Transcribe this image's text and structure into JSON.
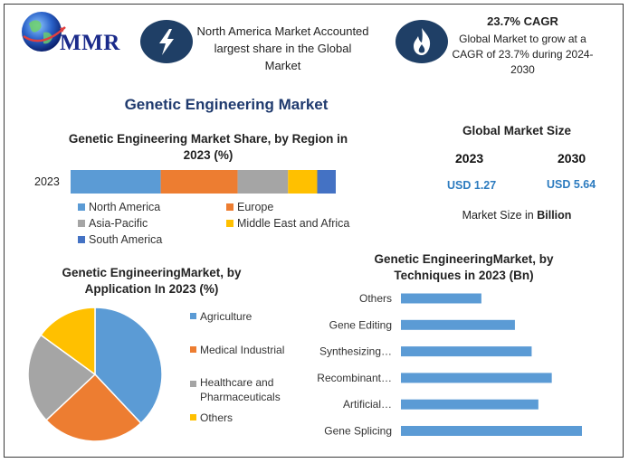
{
  "logo": {
    "text": "MMR"
  },
  "info": {
    "north_america": "North America Market Accounted largest share in the Global Market",
    "cagr_title": "23.7% CAGR",
    "cagr_text": "Global Market to grow at a CAGR of 23.7% during 2024-2030"
  },
  "main_title": "Genetic Engineering Market",
  "market_size": {
    "title": "Global Market Size",
    "year_a": "2023",
    "year_b": "2030",
    "value_a": "USD 1.27",
    "value_b": "USD 5.64",
    "note_prefix": "Market Size in ",
    "note_unit": "Billion"
  },
  "chart_data": [
    {
      "type": "bar",
      "orientation": "horizontal-stacked",
      "title": "Genetic Engineering Market Share, by Region in 2023 (%)",
      "categories": [
        "2023"
      ],
      "series": [
        {
          "name": "North America",
          "values": [
            34
          ],
          "color": "#5b9bd5"
        },
        {
          "name": "Europe",
          "values": [
            29
          ],
          "color": "#ed7d31"
        },
        {
          "name": "Asia-Pacific",
          "values": [
            19
          ],
          "color": "#a5a5a5"
        },
        {
          "name": "Middle East and Africa",
          "values": [
            11
          ],
          "color": "#ffc000"
        },
        {
          "name": "South America",
          "values": [
            7
          ],
          "color": "#4472c4"
        }
      ],
      "legend": "bottom"
    },
    {
      "type": "pie",
      "title": "Genetic EngineeringMarket, by Application In 2023 (%)",
      "labels": [
        "Agriculture",
        "Medical Industrial",
        "Healthcare and Pharmaceuticals",
        "Others"
      ],
      "values": [
        38,
        25,
        22,
        15
      ],
      "colors": [
        "#5b9bd5",
        "#ed7d31",
        "#a5a5a5",
        "#ffc000"
      ],
      "legend": "right"
    },
    {
      "type": "bar",
      "orientation": "horizontal",
      "title": "Genetic EngineeringMarket, by Techniques in 2023 (Bn)",
      "categories": [
        "Others",
        "Gene Editing",
        "Synthesizing…",
        "Recombinant…",
        "Artificial…",
        "Gene Splicing"
      ],
      "values": [
        0.12,
        0.17,
        0.195,
        0.225,
        0.205,
        0.27
      ],
      "color": "#5b9bd5"
    }
  ]
}
